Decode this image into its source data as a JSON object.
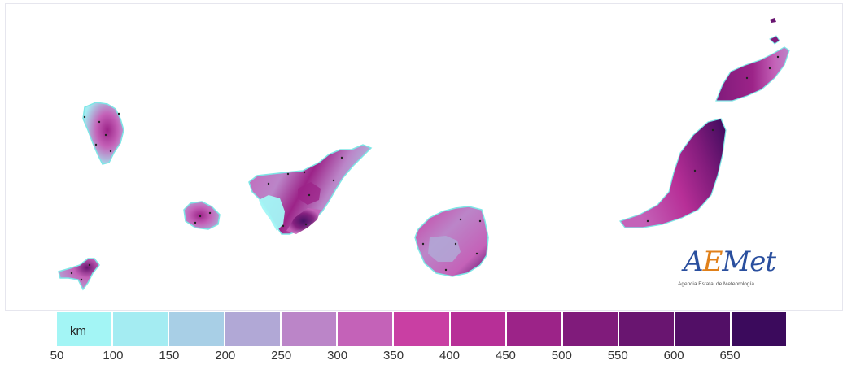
{
  "map": {
    "islands": [
      "La Palma",
      "El Hierro",
      "La Gomera",
      "Tenerife",
      "Gran Canaria",
      "Fuerteventura",
      "Lanzarote"
    ]
  },
  "logo": {
    "brand_a": "A",
    "brand_e": "E",
    "brand_rest": "Met",
    "subtitle": "Agencia Estatal de Meteorología"
  },
  "legend": {
    "unit": "km",
    "ticks": [
      "50",
      "100",
      "150",
      "200",
      "250",
      "300",
      "350",
      "400",
      "450",
      "500",
      "550",
      "600",
      "650"
    ],
    "colors": [
      "#a3f5f5",
      "#a4ecf2",
      "#a8cfe6",
      "#b1a8d6",
      "#bb85c8",
      "#c462b8",
      "#c93fa3",
      "#b72f97",
      "#9c2388",
      "#801b7b",
      "#691570",
      "#520f66",
      "#3b0a5c"
    ]
  }
}
